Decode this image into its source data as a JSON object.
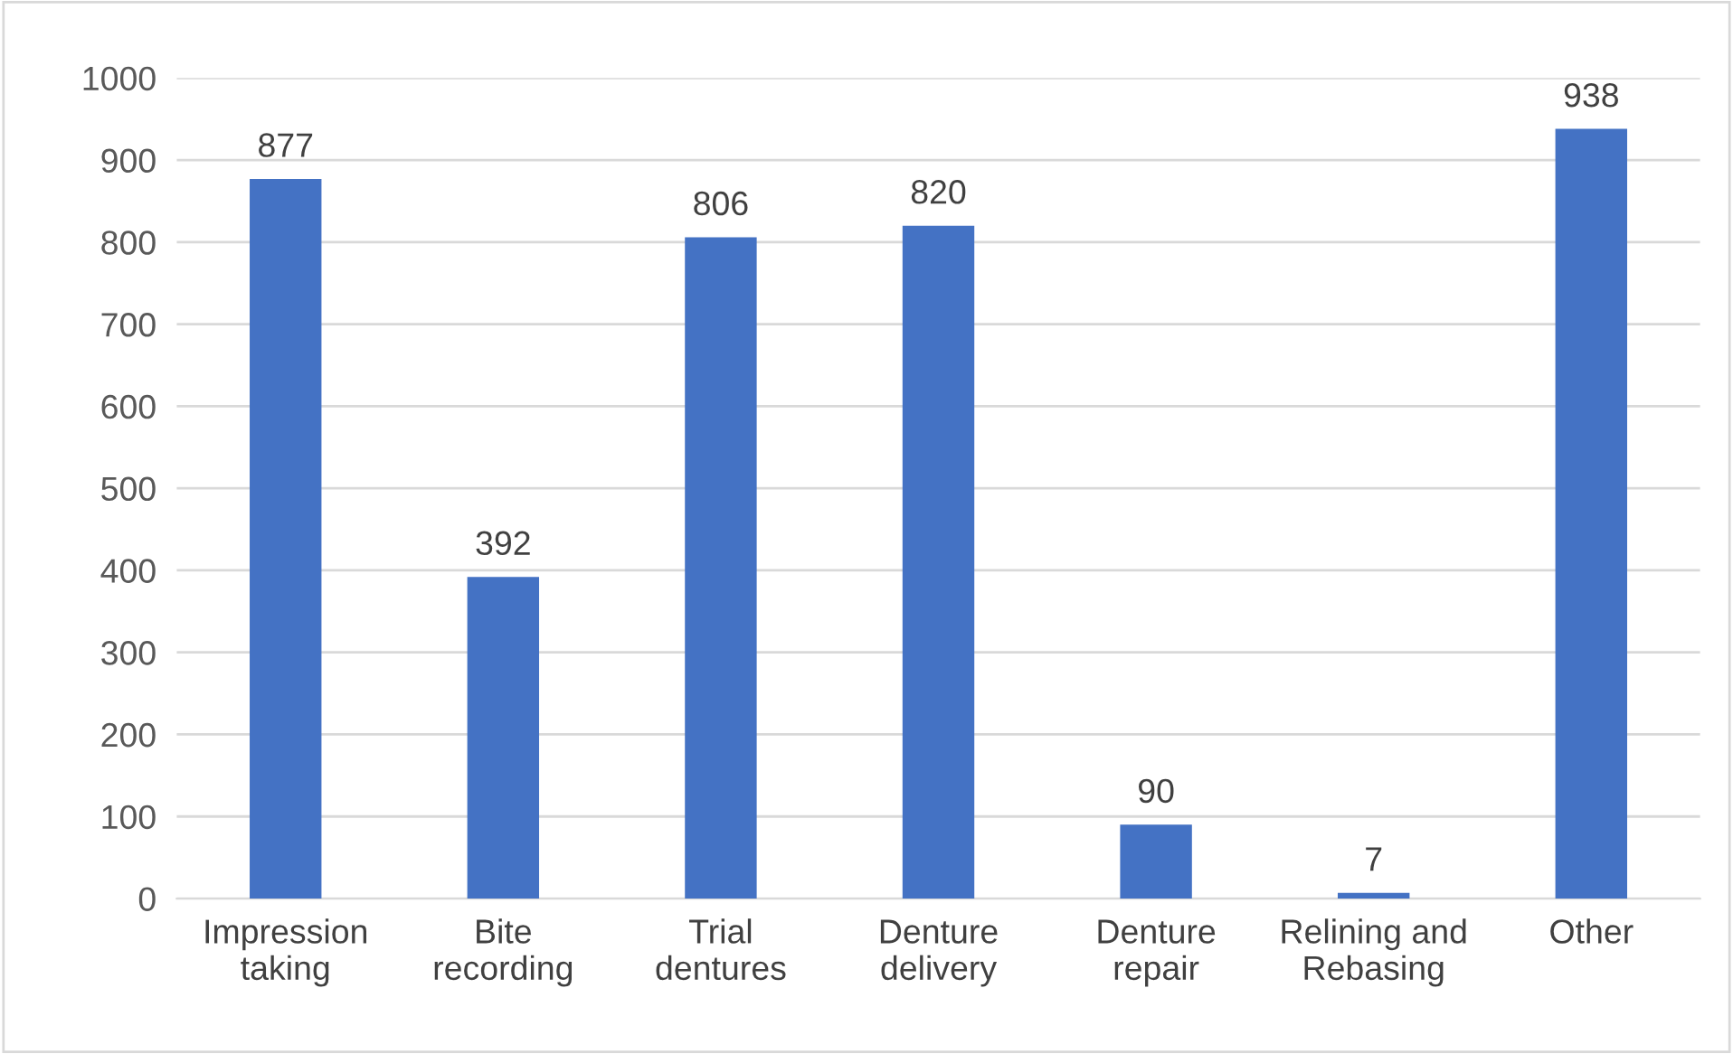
{
  "chart_data": {
    "type": "bar",
    "categories": [
      "Impression\ntaking",
      "Bite\nrecording",
      "Trial\ndentures",
      "Denture\ndelivery",
      "Denture\nrepair",
      "Relining and\nRebasing",
      "Other"
    ],
    "values": [
      877,
      392,
      806,
      820,
      90,
      7,
      938
    ],
    "color": "#4472c4",
    "ylim": [
      0,
      1000
    ],
    "yticks": [
      0,
      100,
      200,
      300,
      400,
      500,
      600,
      700,
      800,
      900,
      1000
    ],
    "grid": "y",
    "data_labels": true
  }
}
